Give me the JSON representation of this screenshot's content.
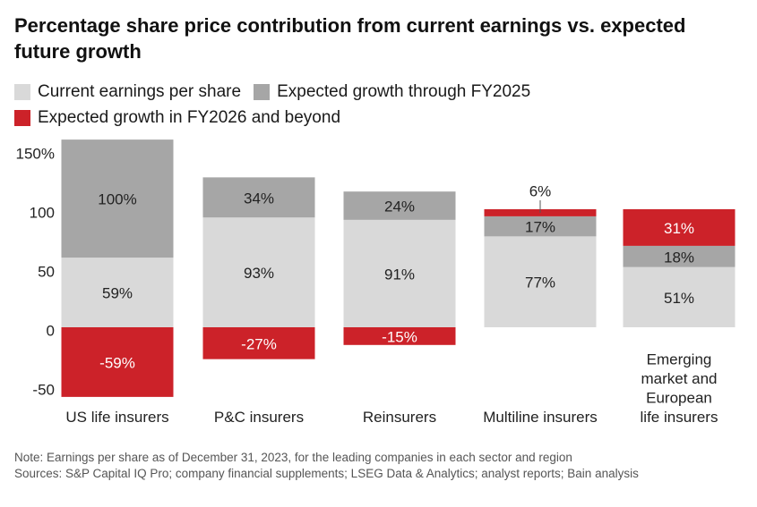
{
  "title": "Percentage share price contribution from current earnings vs. expected future growth",
  "legend": [
    {
      "name": "Current earnings per share",
      "color": "#d9d9d9"
    },
    {
      "name": "Expected growth through FY2025",
      "color": "#a6a6a6"
    },
    {
      "name": "Expected growth in FY2026 and beyond",
      "color": "#cc2229"
    }
  ],
  "notes": {
    "note": "Note: Earnings per share as of December 31, 2023, for the leading companies in each sector and region",
    "sources": "Sources: S&P Capital IQ Pro; company financial supplements; LSEG Data & Analytics; analyst reports; Bain analysis"
  },
  "chart_data": {
    "type": "bar",
    "stacked": true,
    "categories": [
      "US life insurers",
      "P&C insurers",
      "Reinsurers",
      "Multiline insurers",
      "Emerging market and European life insurers"
    ],
    "series": [
      {
        "name": "Current earnings per share",
        "color": "#d9d9d9",
        "values": [
          59,
          93,
          91,
          77,
          51
        ]
      },
      {
        "name": "Expected growth through FY2025",
        "color": "#a6a6a6",
        "values": [
          100,
          34,
          24,
          17,
          18
        ]
      },
      {
        "name": "Expected growth in FY2026 and beyond",
        "color": "#cc2229",
        "values": [
          -59,
          -27,
          -15,
          6,
          31
        ]
      }
    ],
    "data_labels": [
      [
        "59%",
        "93%",
        "91%",
        "77%",
        "51%"
      ],
      [
        "100%",
        "34%",
        "24%",
        "17%",
        "18%"
      ],
      [
        "-59%",
        "-27%",
        "-15%",
        "6%",
        "31%"
      ]
    ],
    "y_ticks": [
      {
        "value": 150,
        "label": "150%"
      },
      {
        "value": 100,
        "label": "100"
      },
      {
        "value": 50,
        "label": "50"
      },
      {
        "value": 0,
        "label": "0"
      },
      {
        "value": -50,
        "label": "-50"
      }
    ],
    "ylim": [
      -60,
      160
    ],
    "grid": false,
    "legend_position": "top-left"
  }
}
